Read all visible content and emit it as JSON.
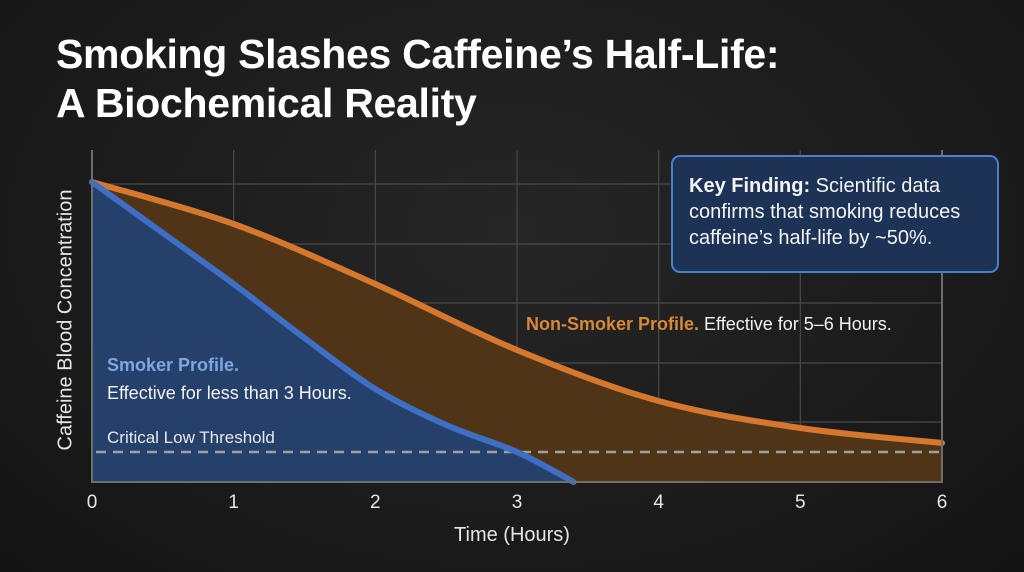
{
  "title": {
    "line1": "Smoking Slashes Caffeine’s Half-Life:",
    "line2": "A Biochemical Reality"
  },
  "callout": {
    "label": "Key Finding:",
    "text": " Scientific data confirms that smoking reduces caffeine’s half-life by ~50%."
  },
  "annotations": {
    "smoker_title": "Smoker Profile.",
    "smoker_desc": "Effective for less than 3 Hours.",
    "nonsmoker_title": "Non-Smoker Profile.",
    "nonsmoker_desc": " Effective for 5–6 Hours.",
    "threshold": "Critical Low Threshold"
  },
  "colors": {
    "smoker": "#3f6fc4",
    "smoker_fill": "#24406b",
    "nonsmoker": "#d5782e",
    "nonsmoker_fill": "#4f3418",
    "threshold": "#a0a0a0",
    "grid": "#4a4a4a",
    "callout_bg": "#1d3355",
    "callout_border": "#4a7fcc"
  },
  "chart_data": {
    "type": "area",
    "title": "Smoking Slashes Caffeine’s Half-Life: A Biochemical Reality",
    "xlabel": "Time (Hours)",
    "ylabel": "Caffeine Blood Concentration",
    "x_ticks": [
      "0",
      "1",
      "2",
      "3",
      "4",
      "5",
      "6"
    ],
    "xlim": [
      0,
      6
    ],
    "ylim": [
      0,
      100
    ],
    "y_tick_labels_shown": false,
    "grid": true,
    "legend": "inline annotations",
    "series": [
      {
        "name": "Smoker Profile",
        "note": "Effective for less than 3 Hours.",
        "x": [
          0,
          0.5,
          1,
          1.5,
          2,
          2.5,
          3,
          3.4
        ],
        "values": [
          100,
          83,
          66,
          48,
          31,
          19,
          10,
          0
        ]
      },
      {
        "name": "Non-Smoker Profile",
        "note": "Effective for 5–6 Hours.",
        "x": [
          0,
          1,
          2,
          3,
          4,
          5,
          6
        ],
        "values": [
          100,
          86,
          66,
          44,
          27,
          18,
          13
        ]
      }
    ],
    "reference_lines": [
      {
        "name": "Critical Low Threshold",
        "y": 10,
        "style": "dashed"
      }
    ],
    "annotation_box": "Key Finding: Scientific data confirms that smoking reduces caffeine’s half-life by ~50%."
  }
}
